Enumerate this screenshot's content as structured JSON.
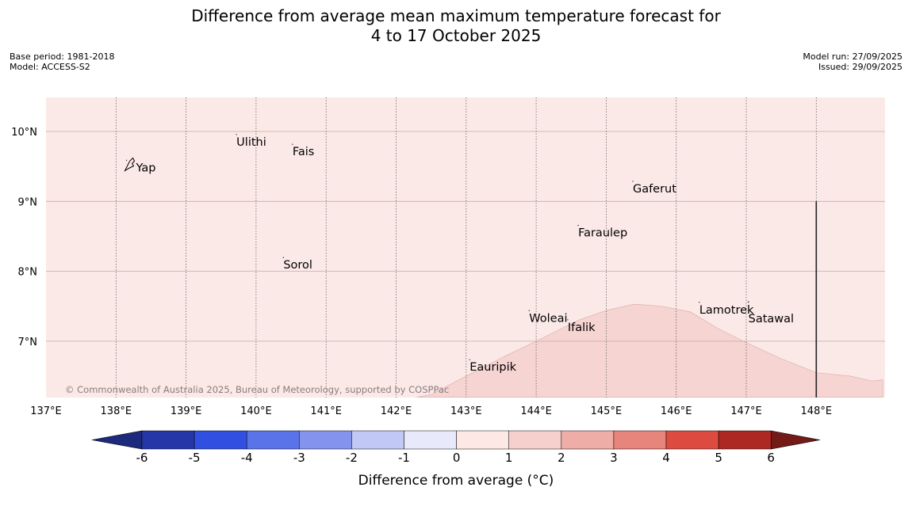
{
  "header": {
    "title_line1": "Difference from average mean maximum temperature forecast for",
    "title_line2": "4 to 17 October 2025",
    "base_period": "Base period: 1981-2018",
    "model": "Model: ACCESS-S2",
    "model_run": "Model run: 27/09/2025",
    "issued": "Issued: 29/09/2025"
  },
  "map": {
    "lon_labels": [
      "137°E",
      "138°E",
      "139°E",
      "140°E",
      "141°E",
      "142°E",
      "143°E",
      "144°E",
      "145°E",
      "146°E",
      "147°E",
      "148°E"
    ],
    "lat_labels": [
      "10°N",
      "9°N",
      "8°N",
      "7°N"
    ],
    "places": [
      {
        "name": "Yap",
        "lon": 138.15,
        "lat": 9.53
      },
      {
        "name": "Ulithi",
        "lon": 139.72,
        "lat": 9.9
      },
      {
        "name": "Fais",
        "lon": 140.52,
        "lat": 9.76
      },
      {
        "name": "Gaferut",
        "lon": 145.38,
        "lat": 9.23
      },
      {
        "name": "Faraulep",
        "lon": 144.6,
        "lat": 8.6
      },
      {
        "name": "Sorol",
        "lon": 140.39,
        "lat": 8.14
      },
      {
        "name": "Lamotrek",
        "lon": 146.33,
        "lat": 7.5
      },
      {
        "name": "Woleai",
        "lon": 143.9,
        "lat": 7.38
      },
      {
        "name": "Ifalik",
        "lon": 144.45,
        "lat": 7.25
      },
      {
        "name": "Satawal",
        "lon": 147.03,
        "lat": 7.37
      },
      {
        "name": "Eauripik",
        "lon": 143.05,
        "lat": 6.68
      }
    ],
    "copyright": "© Commonwealth of Australia 2025, Bureau of Meteorology, supported by COSPPac"
  },
  "colorbar": {
    "ticks": [
      "-6",
      "-5",
      "-4",
      "-3",
      "-2",
      "-1",
      "0",
      "1",
      "2",
      "3",
      "4",
      "5",
      "6"
    ],
    "colors": [
      "#2536a8",
      "#3150e2",
      "#5a73e8",
      "#8494ee",
      "#c1c8f6",
      "#e8eafc",
      "#fde8e6",
      "#f5d0cc",
      "#eeada6",
      "#e7847c",
      "#dd4a40",
      "#ad2822"
    ],
    "low_color": "#1d2a7c",
    "high_color": "#741b17",
    "label": "Difference from average (°C)"
  },
  "colors": {
    "background_anomaly": "#fbe9e7",
    "warm_anomaly": "#f5d4d1"
  }
}
